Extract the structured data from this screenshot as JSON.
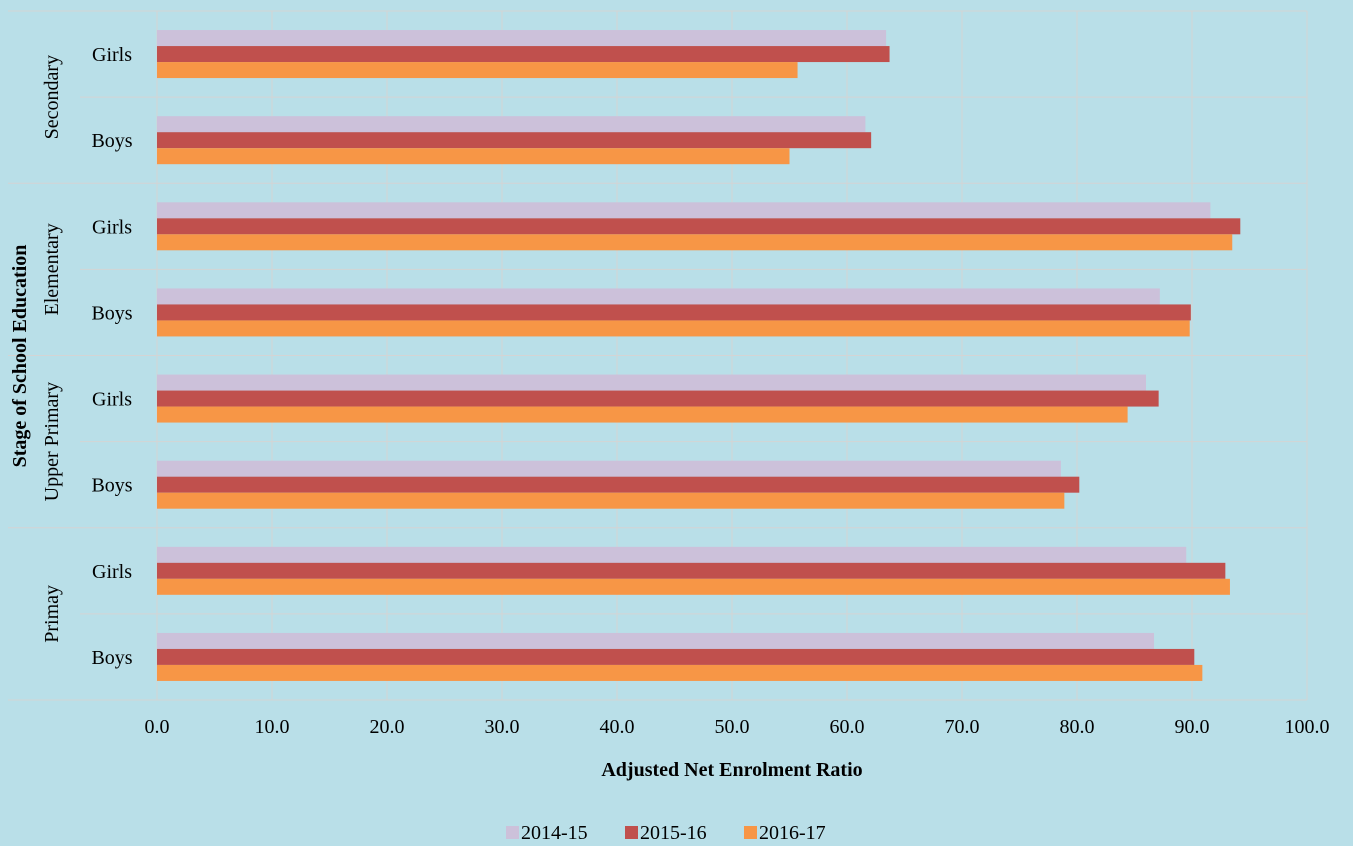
{
  "chart_data": {
    "type": "bar",
    "orientation": "horizontal",
    "xlabel": "Adjusted Net Enrolment Ratio",
    "ylabel": "Stage of School Education",
    "xlim": [
      0,
      100
    ],
    "x_ticks": [
      "0.0",
      "10.0",
      "20.0",
      "30.0",
      "40.0",
      "50.0",
      "60.0",
      "70.0",
      "80.0",
      "90.0",
      "100.0"
    ],
    "grid": true,
    "legend_position": "bottom",
    "groups": [
      "Primay",
      "Upper Primary",
      "Elementary",
      "Secondary"
    ],
    "categories": [
      {
        "group": "Primay",
        "label": "Boys"
      },
      {
        "group": "Primay",
        "label": "Girls"
      },
      {
        "group": "Upper Primary",
        "label": "Boys"
      },
      {
        "group": "Upper Primary",
        "label": "Girls"
      },
      {
        "group": "Elementary",
        "label": "Boys"
      },
      {
        "group": "Elementary",
        "label": "Girls"
      },
      {
        "group": "Secondary",
        "label": "Boys"
      },
      {
        "group": "Secondary",
        "label": "Girls"
      }
    ],
    "series": [
      {
        "name": "2014-15",
        "color": "#ccc1da",
        "values": [
          86.7,
          89.5,
          78.6,
          86.0,
          87.2,
          91.6,
          61.6,
          63.4
        ]
      },
      {
        "name": "2015-16",
        "color": "#c0504d",
        "values": [
          90.2,
          92.9,
          80.2,
          87.1,
          89.9,
          94.2,
          62.1,
          63.7
        ]
      },
      {
        "name": "2016-17",
        "color": "#f79646",
        "values": [
          90.9,
          93.3,
          78.9,
          84.4,
          89.8,
          93.5,
          55.0,
          55.7
        ]
      }
    ]
  }
}
